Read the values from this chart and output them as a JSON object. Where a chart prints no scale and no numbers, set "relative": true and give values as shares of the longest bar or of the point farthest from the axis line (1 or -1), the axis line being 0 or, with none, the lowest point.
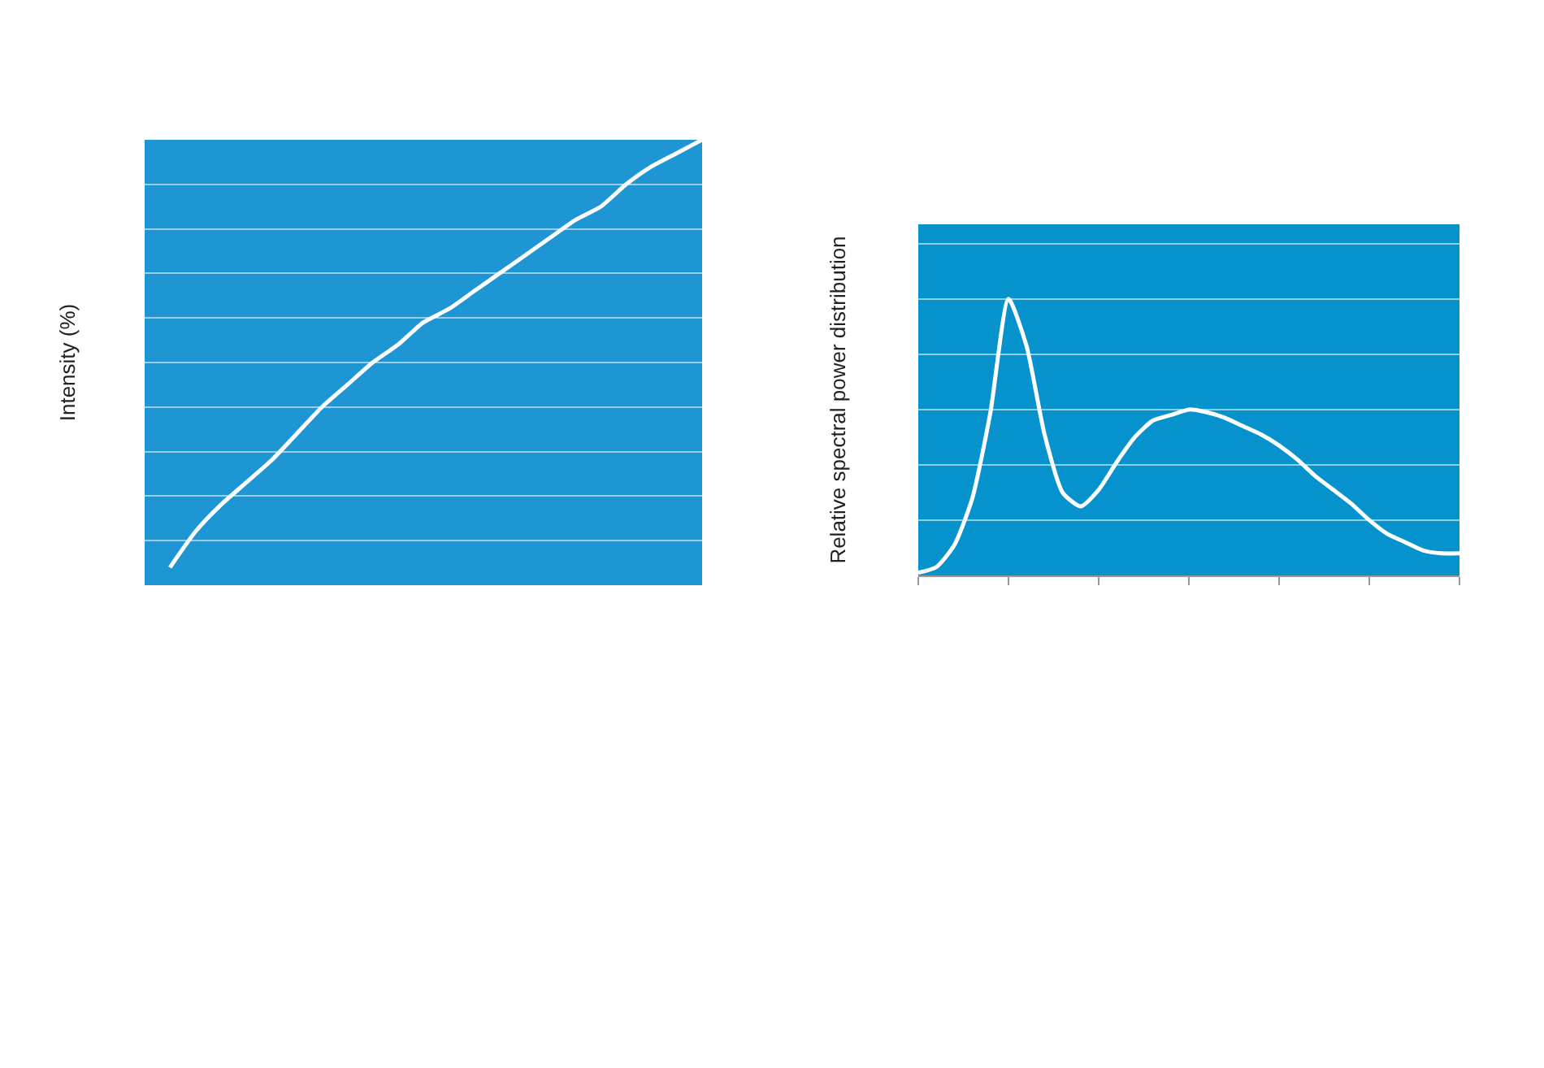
{
  "chart_data": [
    {
      "type": "line",
      "relative": true,
      "ylabel": "Intensity (%)",
      "grid": "y",
      "marker": "none",
      "line_style": "solid",
      "categories": [
        null,
        null,
        null,
        null,
        null,
        null,
        null,
        null,
        null,
        null,
        null,
        null,
        null,
        null,
        null,
        null,
        null,
        null,
        null,
        null,
        null,
        null,
        null
      ],
      "series": [
        {
          "color": "#ffffff",
          "values": [
            null,
            0.04,
            0.12,
            0.18,
            0.23,
            0.28,
            0.34,
            0.4,
            0.45,
            0.5,
            0.54,
            0.59,
            0.62,
            0.66,
            0.7,
            0.74,
            0.78,
            0.82,
            0.85,
            0.9,
            0.94,
            0.97,
            1.0
          ]
        }
      ]
    },
    {
      "type": "line",
      "relative": true,
      "ylabel": "Relative spectral power distribution",
      "grid": "y",
      "marker": "none",
      "line_style": "solid",
      "categories": [
        null,
        null,
        null,
        null,
        null,
        null,
        null,
        null,
        null,
        null,
        null,
        null,
        null,
        null,
        null,
        null,
        null,
        null,
        null,
        null,
        null,
        null,
        null,
        null,
        null,
        null,
        null,
        null,
        null,
        null,
        null
      ],
      "series": [
        {
          "color": "#ffffff",
          "values": [
            0.01,
            0.03,
            0.11,
            0.28,
            0.59,
            1.0,
            0.83,
            0.51,
            0.3,
            0.25,
            0.31,
            0.41,
            0.5,
            0.56,
            0.58,
            0.6,
            0.59,
            0.57,
            0.54,
            0.51,
            0.47,
            0.42,
            0.36,
            0.31,
            0.26,
            0.2,
            0.15,
            0.12,
            0.09,
            0.08,
            0.08
          ]
        }
      ]
    }
  ]
}
